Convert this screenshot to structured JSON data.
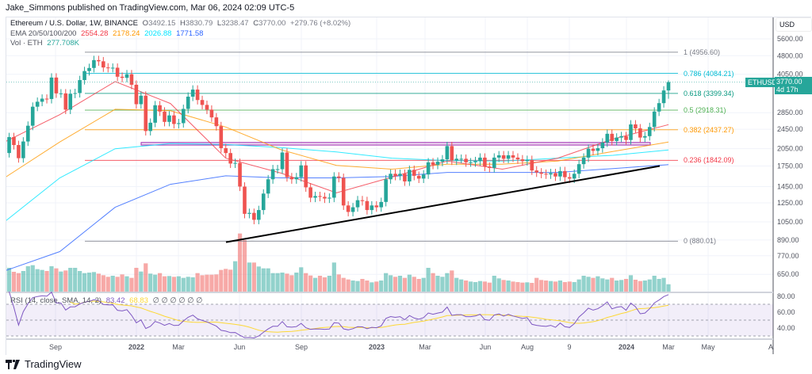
{
  "published": "Jake_Simmons published on TradingView.com, Mar 06, 2024 02:09 UTC-5",
  "legend": {
    "symbol": "Ethereum / U.S. Dollar, 1W, BINANCE",
    "o_label": "O",
    "o": "3492.15",
    "h_label": "H",
    "h": "3830.79",
    "l_label": "L",
    "l": "3238.47",
    "c_label": "C",
    "c": "3770.00",
    "change": "+279.76 (+8.02%)",
    "ema_label": "EMA 20/50/100/200",
    "ema20": "2554.28",
    "ema50": "2178.24",
    "ema100": "2026.88",
    "ema200": "1771.58",
    "vol_label": "Vol · ETH",
    "vol": "277.708K",
    "rsi_label": "RSI (14, close, SMA, 14, 2)",
    "rsi": "83.42",
    "rsi_sma": "68.83",
    "rsi_na": "∅ ∅ ∅ ∅ ∅ ∅"
  },
  "axis": {
    "currency": "USD",
    "symbol_badge": "ETHUSD",
    "last_price": "3770.00",
    "countdown": "4d 17h"
  },
  "footer": {
    "brand": "TradingView"
  },
  "colors": {
    "up": "#26a69a",
    "down": "#ef5350",
    "ema20": "#f23645",
    "ema50": "#ff9800",
    "ema100": "#00e5ff",
    "ema200": "#2962ff",
    "rsi": "#7e57c2",
    "rsi_sma": "#fdd835",
    "box": "#9c27b0"
  },
  "chart_data": {
    "type": "candlestick",
    "scale": "log",
    "interval": "1W",
    "first_open": 1880,
    "closes": [
      1970,
      2280,
      2120,
      1880,
      2190,
      2530,
      3010,
      3150,
      3240,
      3230,
      3930,
      3400,
      3400,
      2930,
      3390,
      3410,
      3840,
      4170,
      4290,
      4610,
      4560,
      4310,
      4290,
      4300,
      3960,
      3920,
      4050,
      3680,
      3080,
      3330,
      2410,
      2600,
      3050,
      2880,
      2620,
      2780,
      2570,
      2590,
      2950,
      3300,
      3520,
      3200,
      3060,
      2930,
      2730,
      2520,
      2060,
      1970,
      1790,
      1800,
      1450,
      1130,
      1140,
      1070,
      1170,
      1360,
      1550,
      1700,
      1700,
      1980,
      1580,
      1550,
      1580,
      1760,
      1440,
      1310,
      1330,
      1320,
      1300,
      1310,
      1590,
      1570,
      1220,
      1150,
      1200,
      1280,
      1270,
      1170,
      1220,
      1200,
      1260,
      1550,
      1630,
      1600,
      1630,
      1520,
      1690,
      1600,
      1560,
      1620,
      1810,
      1770,
      1820,
      1860,
      2100,
      1840,
      1870,
      1870,
      1810,
      1810,
      1830,
      1890,
      1740,
      1720,
      1890,
      1930,
      1870,
      1930,
      1890,
      1860,
      1830,
      1850,
      1680,
      1650,
      1630,
      1620,
      1640,
      1590,
      1670,
      1580,
      1560,
      1630,
      1780,
      1890,
      2050,
      2010,
      2060,
      2170,
      2350,
      2200,
      2270,
      2300,
      2220,
      2560,
      2470,
      2270,
      2300,
      2500,
      2880,
      3110,
      3492.15,
      3770
    ],
    "volume_k": [
      1000,
      900,
      750,
      700,
      780,
      960,
      1000,
      850,
      820,
      780,
      960,
      880,
      760,
      800,
      900,
      900,
      780,
      700,
      720,
      740,
      680,
      620,
      560,
      600,
      560,
      650,
      580,
      520,
      900,
      760,
      1070,
      680,
      640,
      700,
      580,
      590,
      560,
      580,
      520,
      560,
      540,
      700,
      620,
      640,
      640,
      650,
      820,
      860,
      830,
      1150,
      2200,
      1950,
      1100,
      1100,
      950,
      880,
      880,
      700,
      700,
      720,
      680,
      620,
      720,
      920,
      700,
      610,
      520,
      600,
      540,
      600,
      1100,
      650,
      520,
      460,
      420,
      400,
      480,
      420,
      350,
      380,
      420,
      700,
      620,
      560,
      600,
      520,
      640,
      560,
      480,
      520,
      900,
      700,
      600,
      560,
      700,
      800,
      520,
      460,
      420,
      380,
      360,
      400,
      380,
      340,
      600,
      500,
      440,
      420,
      380,
      360,
      340,
      350,
      330,
      520,
      440,
      420,
      400,
      380,
      420,
      360,
      380,
      360,
      460,
      600,
      560,
      520,
      580,
      500,
      460,
      520,
      420,
      440,
      480,
      620,
      450,
      400,
      420,
      460,
      600,
      480,
      520,
      277.708
    ],
    "ema_samples": {
      "ema20": [
        2180,
        2800,
        3790,
        3100,
        1880,
        1640,
        1370,
        1580,
        1830,
        1700,
        1880,
        2240,
        2554.28
      ],
      "ema50": [
        1570,
        2180,
        2940,
        2900,
        2500,
        2030,
        1760,
        1700,
        1780,
        1780,
        1830,
        2000,
        2178.24
      ],
      "ema100": [
        1050,
        1570,
        2050,
        2150,
        2130,
        2070,
        1990,
        1880,
        1840,
        1830,
        1880,
        1930,
        2026.88
      ],
      "ema200": [
        670,
        800,
        1200,
        1480,
        1600,
        1570,
        1570,
        1590,
        1650,
        1650,
        1650,
        1710,
        1771.58
      ]
    },
    "fib_levels": [
      {
        "label": "1 (4956.60)",
        "price": 4956.6,
        "color": "#787b86"
      },
      {
        "label": "0.786 (4084.21)",
        "price": 4084.21,
        "color": "#00bcd4"
      },
      {
        "label": "0.618 (3399.34)",
        "price": 3399.34,
        "color": "#089981"
      },
      {
        "label": "0.5 (2918.31)",
        "price": 2918.31,
        "color": "#4caf50"
      },
      {
        "label": "0.382 (2437.27)",
        "price": 2437.27,
        "color": "#ff9800"
      },
      {
        "label": "0.236 (1842.09)",
        "price": 1842.09,
        "color": "#f23645"
      },
      {
        "label": "0 (880.01)",
        "price": 880.01,
        "color": "#787b86"
      }
    ],
    "support_box": {
      "low": 2120,
      "high": 2170
    },
    "trendline": {
      "from_price": 872,
      "to_price": 1750
    },
    "y_ticks": [
      "5600.00",
      "4800.00",
      "4050.00",
      "2850.00",
      "2450.00",
      "2050.00",
      "1750.00",
      "1450.00",
      "1250.00",
      "1050.00",
      "890.00",
      "770.00",
      "650.00"
    ],
    "rsi_ticks": [
      "80.00",
      "60.00",
      "40.00"
    ],
    "rsi_levels": [
      70,
      50,
      30
    ],
    "x_ticks": [
      "Sep",
      "2022",
      "Mar",
      "Jun",
      "Sep",
      "2023",
      "Mar",
      "Jun",
      "Aug",
      "9",
      "2024",
      "Mar",
      "May",
      "A"
    ]
  }
}
